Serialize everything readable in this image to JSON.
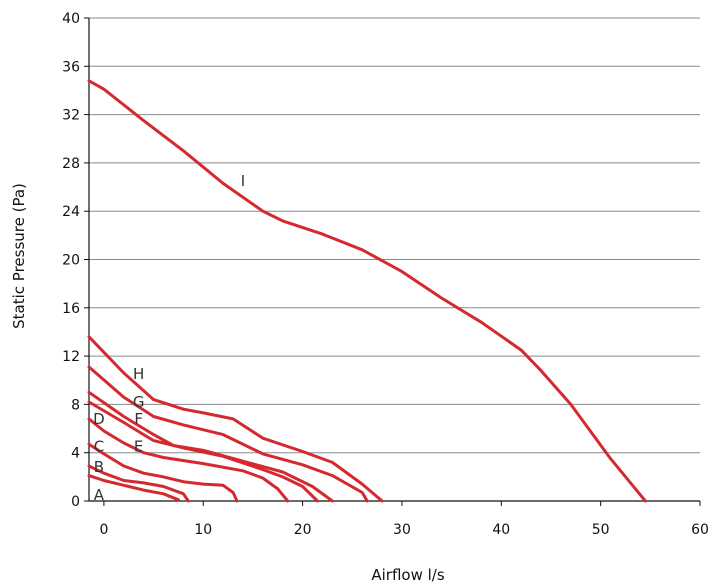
{
  "chart_data": {
    "type": "line",
    "title": "",
    "xlabel": "Airflow l/s",
    "ylabel": "Static Pressure (Pa)",
    "xlim": [
      -1.5,
      60
    ],
    "ylim": [
      0,
      40
    ],
    "x_ticks": [
      "0",
      "10",
      "20",
      "30",
      "40",
      "50",
      "60"
    ],
    "y_ticks": [
      "0",
      "4",
      "8",
      "12",
      "16",
      "20",
      "24",
      "28",
      "32",
      "36",
      "40"
    ],
    "grid": "horizontal",
    "line_color": "#d42a2f",
    "series": [
      {
        "name": "A",
        "label_at": [
          -0.5,
          0.5
        ],
        "points": [
          [
            -1.5,
            2.1
          ],
          [
            0,
            1.7
          ],
          [
            2,
            1.3
          ],
          [
            4,
            0.9
          ],
          [
            6,
            0.6
          ],
          [
            7.5,
            0.1
          ]
        ]
      },
      {
        "name": "B",
        "label_at": [
          -0.5,
          2.8
        ],
        "points": [
          [
            -1.5,
            2.9
          ],
          [
            0,
            2.3
          ],
          [
            2,
            1.7
          ],
          [
            4,
            1.5
          ],
          [
            6,
            1.2
          ],
          [
            8,
            0.6
          ],
          [
            8.5,
            0
          ]
        ]
      },
      {
        "name": "C",
        "label_at": [
          -0.5,
          4.5
        ],
        "points": [
          [
            -1.5,
            4.7
          ],
          [
            0,
            3.9
          ],
          [
            2,
            2.9
          ],
          [
            4,
            2.3
          ],
          [
            6,
            2.0
          ],
          [
            8,
            1.6
          ],
          [
            10,
            1.4
          ],
          [
            12,
            1.3
          ],
          [
            13,
            0.7
          ],
          [
            13.4,
            0
          ]
        ]
      },
      {
        "name": "D",
        "label_at": [
          -0.5,
          6.8
        ],
        "points": [
          [
            -1.5,
            6.8
          ],
          [
            0,
            5.8
          ],
          [
            2,
            4.8
          ],
          [
            4,
            4.0
          ],
          [
            6,
            3.6
          ],
          [
            10,
            3.1
          ],
          [
            14,
            2.5
          ],
          [
            16,
            1.9
          ],
          [
            17.5,
            1.0
          ],
          [
            18.5,
            0
          ]
        ]
      },
      {
        "name": "E",
        "label_at": [
          3.5,
          4.5
        ],
        "points": [
          [
            -1.5,
            8.2
          ],
          [
            2,
            6.5
          ],
          [
            5,
            5.0
          ],
          [
            8,
            4.4
          ],
          [
            12,
            3.7
          ],
          [
            16,
            2.6
          ],
          [
            18,
            2.0
          ],
          [
            20,
            1.2
          ],
          [
            21.5,
            0
          ]
        ]
      },
      {
        "name": "F",
        "label_at": [
          3.5,
          6.8
        ],
        "points": [
          [
            -1.5,
            9.0
          ],
          [
            2,
            7.0
          ],
          [
            5,
            5.5
          ],
          [
            7,
            4.6
          ],
          [
            10,
            4.2
          ],
          [
            14,
            3.3
          ],
          [
            18,
            2.4
          ],
          [
            21,
            1.2
          ],
          [
            23,
            0
          ]
        ]
      },
      {
        "name": "G",
        "label_at": [
          3.5,
          8.2
        ],
        "points": [
          [
            -1.5,
            11.1
          ],
          [
            2,
            8.6
          ],
          [
            5,
            7.0
          ],
          [
            8,
            6.3
          ],
          [
            12,
            5.5
          ],
          [
            16,
            3.9
          ],
          [
            20,
            3.0
          ],
          [
            23,
            2.1
          ],
          [
            26,
            0.7
          ],
          [
            26.5,
            0
          ]
        ]
      },
      {
        "name": "H",
        "label_at": [
          3.5,
          10.5
        ],
        "points": [
          [
            -1.5,
            13.6
          ],
          [
            2,
            10.6
          ],
          [
            5,
            8.4
          ],
          [
            8,
            7.6
          ],
          [
            10,
            7.3
          ],
          [
            13,
            6.8
          ],
          [
            16,
            5.2
          ],
          [
            20,
            4.1
          ],
          [
            23,
            3.2
          ],
          [
            26,
            1.4
          ],
          [
            28,
            0
          ]
        ]
      },
      {
        "name": "I",
        "label_at": [
          14,
          26.5
        ],
        "points": [
          [
            -1.5,
            34.8
          ],
          [
            0,
            34.1
          ],
          [
            4,
            31.5
          ],
          [
            8,
            29.0
          ],
          [
            12,
            26.3
          ],
          [
            16,
            24.0
          ],
          [
            18,
            23.2
          ],
          [
            22,
            22.1
          ],
          [
            26,
            20.8
          ],
          [
            30,
            19.0
          ],
          [
            34,
            16.8
          ],
          [
            38,
            14.8
          ],
          [
            42,
            12.5
          ],
          [
            44,
            10.8
          ],
          [
            47,
            8.0
          ],
          [
            51,
            3.5
          ],
          [
            54.5,
            0
          ]
        ]
      }
    ]
  }
}
